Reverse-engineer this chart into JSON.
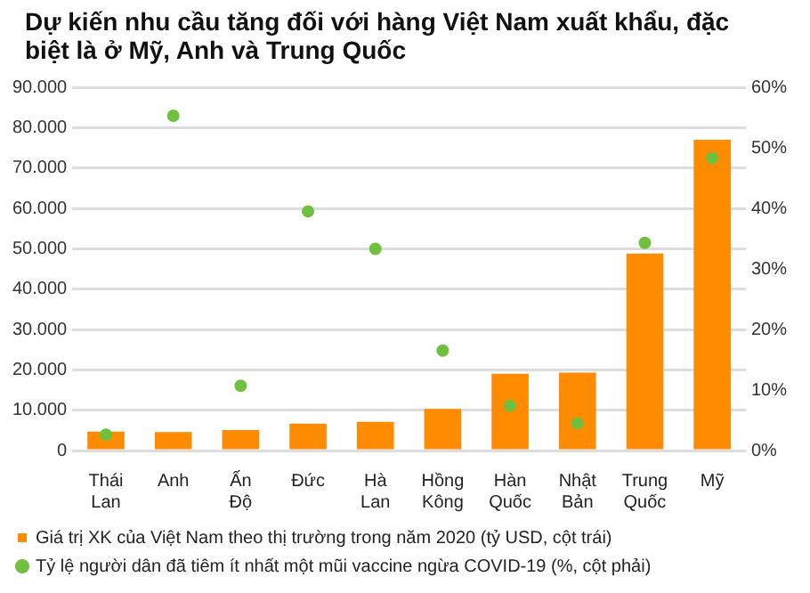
{
  "chart_data": {
    "type": "bar",
    "title": "Dự kiến nhu cầu tăng đối với hàng Việt Nam xuất khẩu, đặc biệt là ở Mỹ, Anh và Trung Quốc",
    "categories": [
      "Thái Lan",
      "Anh",
      "Ấn Độ",
      "Đức",
      "Hà Lan",
      "Hồng Kông",
      "Hàn Quốc",
      "Nhật Bản",
      "Trung Quốc",
      "Mỹ"
    ],
    "series": [
      {
        "name": "Giá trị XK của Việt Nam theo thị trường trong năm 2020 (tỷ USD, cột trái)",
        "color": "#ff8c00",
        "values": [
          4700,
          4600,
          5100,
          6700,
          7100,
          10300,
          19000,
          19300,
          48800,
          77000
        ]
      },
      {
        "name": "Tỷ lệ người dân đã tiêm ít nhất một mũi vaccine ngừa COVID-19 (%, cột phải)",
        "type": "scatter",
        "axis": "y2",
        "color": "#70c040",
        "marker": "circle",
        "values": [
          2.6,
          55.3,
          10.7,
          39.5,
          33.3,
          16.5,
          7.4,
          4.5,
          34.3,
          48.3
        ]
      }
    ],
    "ylim": [
      0,
      90000
    ],
    "yticks": [
      {
        "value": 0,
        "label": "0"
      },
      {
        "value": 10000,
        "label": "10.000"
      },
      {
        "value": 20000,
        "label": "20.000"
      },
      {
        "value": 30000,
        "label": "30.000"
      },
      {
        "value": 40000,
        "label": "40.000"
      },
      {
        "value": 50000,
        "label": "50.000"
      },
      {
        "value": 60000,
        "label": "60.000"
      },
      {
        "value": 70000,
        "label": "70.000"
      },
      {
        "value": 80000,
        "label": "80.000"
      },
      {
        "value": 90000,
        "label": "90.000"
      }
    ],
    "y2lim": [
      0,
      60
    ],
    "y2ticks": [
      {
        "value": 0,
        "label": "0%"
      },
      {
        "value": 10,
        "label": "10%"
      },
      {
        "value": 20,
        "label": "20%"
      },
      {
        "value": 30,
        "label": "30%"
      },
      {
        "value": 40,
        "label": "40%"
      },
      {
        "value": 50,
        "label": "50%"
      },
      {
        "value": 60,
        "label": "60%"
      }
    ],
    "grid": "y",
    "legend": "bottom"
  }
}
